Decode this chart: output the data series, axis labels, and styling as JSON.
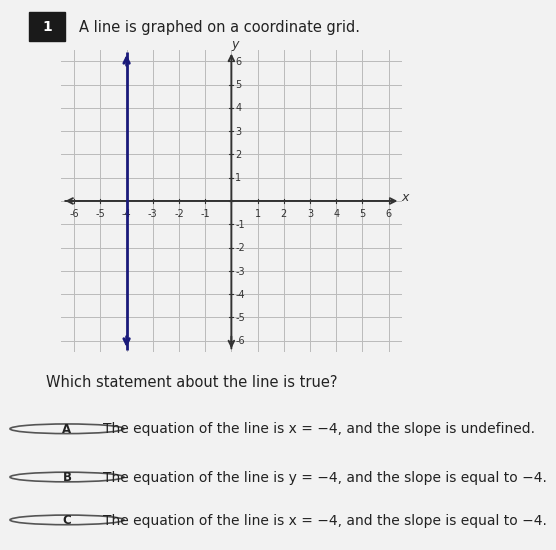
{
  "title_number": "1",
  "title_text": "A line is graphed on a coordinate grid.",
  "x_min": -6,
  "x_max": 6,
  "y_min": -6,
  "y_max": 6,
  "vertical_line_x": -4,
  "line_color": "#1a1a7a",
  "grid_color": "#bbbbbb",
  "axis_color": "#333333",
  "bg_color": "#f2f2f2",
  "plot_bg_color": "#ffffff",
  "border_color": "#444444",
  "question_text": "Which statement about the line is true?",
  "option_A": "The equation of the line is x = −4, and the slope is undefined.",
  "option_B": "The equation of the line is y = −4, and the slope is equal to −4.",
  "option_C": "The equation of the line is x = −4, and the slope is equal to −4.",
  "option_A_circle": "A",
  "option_B_circle": "B",
  "option_C_circle": "C",
  "x_ticks": [
    -6,
    -5,
    -4,
    -3,
    -2,
    -1,
    1,
    2,
    3,
    4,
    5,
    6
  ],
  "y_ticks": [
    -6,
    -5,
    -4,
    -3,
    -2,
    -1,
    1,
    2,
    3,
    4,
    5,
    6
  ]
}
